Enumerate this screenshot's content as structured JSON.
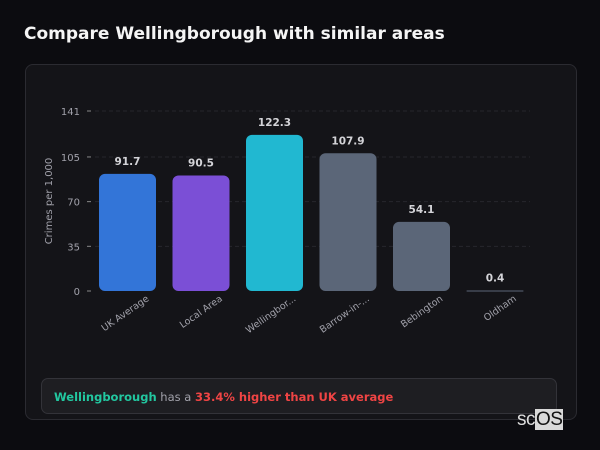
{
  "title": "Compare Wellingborough with similar areas",
  "chart_data": {
    "type": "bar",
    "categories": [
      "UK Average",
      "Local Area",
      "Wellingbor...",
      "Barrow-in-...",
      "Bebington",
      "Oldham"
    ],
    "values": [
      91.7,
      90.5,
      122.3,
      107.9,
      54.1,
      0.4
    ],
    "value_labels": [
      "91.7",
      "90.5",
      "122.3",
      "107.9",
      "54.1",
      "0.4"
    ],
    "colors": [
      "#3375d8",
      "#7b4fd6",
      "#21b8d1",
      "#5b6678",
      "#5b6678",
      "#5b6678"
    ],
    "ylabel": "Crimes per 1,000",
    "yticks": [
      0,
      35,
      70,
      105,
      141
    ],
    "ylim": [
      0,
      141
    ],
    "grid": true
  },
  "note": {
    "area": "Wellingborough",
    "middle": "has a",
    "comparison": "33.4% higher than UK average"
  },
  "logo": {
    "prefix": "sc",
    "suffix": "OS"
  }
}
